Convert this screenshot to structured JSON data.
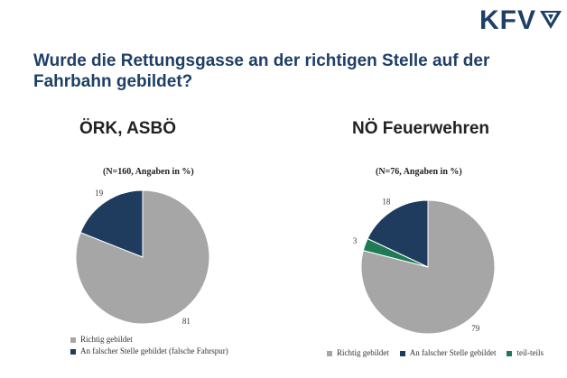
{
  "logo": {
    "text": "KFV"
  },
  "question": "Wurde die Rettungsgasse an der richtigen Stelle auf der Fahrbahn gebildet?",
  "chart_data": [
    {
      "type": "pie",
      "title": "ÖRK, ASBÖ",
      "subtitle": "(N=160, Angaben in %)",
      "labels": [
        "Richtig gebildet",
        "An falscher Stelle gebildet (falsche Fahrspur)"
      ],
      "values": [
        81,
        19
      ],
      "colors": [
        "#a6a6a6",
        "#1f3c5e"
      ],
      "legend": "bottom-left, vertical"
    },
    {
      "type": "pie",
      "title": "NÖ Feuerwehren",
      "subtitle": "(N=76, Angaben in %)",
      "labels": [
        "Richtig gebildet",
        "An falscher Stelle gebildet",
        "teil-teils"
      ],
      "values": [
        79,
        18,
        3
      ],
      "colors": [
        "#a6a6a6",
        "#1f3c5e",
        "#1e7b55"
      ],
      "legend": "bottom, horizontal"
    }
  ]
}
